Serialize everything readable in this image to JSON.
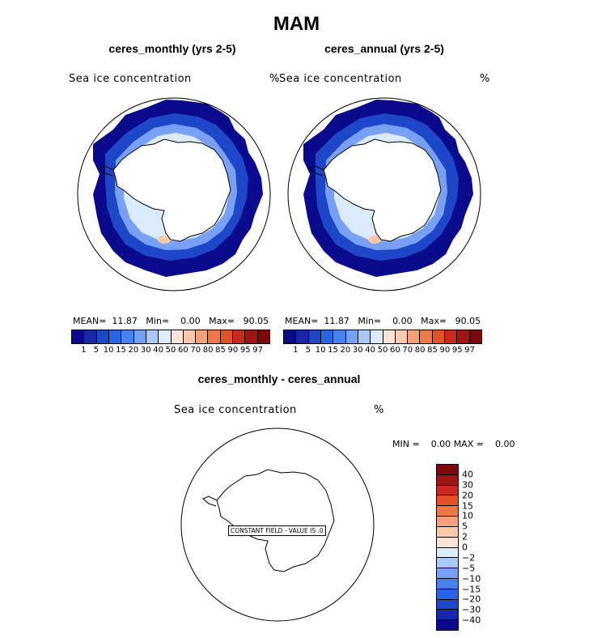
{
  "title": "MAM",
  "panels": [
    {
      "subtitle": "ceres_monthly (yrs 2-5)",
      "field_name": "Sea ice concentration",
      "units": "%",
      "stats": {
        "mean_label": "MEAN=",
        "mean": "11.87",
        "min_label": "Min=",
        "min": "0.00",
        "max_label": "Max=",
        "max": "90.05"
      }
    },
    {
      "subtitle": "ceres_annual (yrs 2-5)",
      "field_name": "Sea ice concentration",
      "units": "%",
      "stats": {
        "mean_label": "MEAN=",
        "mean": "11.87",
        "min_label": "Min=",
        "min": "0.00",
        "max_label": "Max=",
        "max": "90.05"
      }
    }
  ],
  "diff_panel": {
    "subtitle": "ceres_monthly - ceres_annual",
    "field_name": "Sea ice concentration",
    "units": "%",
    "stats": {
      "min_label": "MIN =",
      "min": "0.00",
      "max_label": "MAX =",
      "max": "0.00"
    },
    "constant_note": "CONSTANT FIELD - VALUE IS .0"
  },
  "colorbar_main": {
    "colors": [
      "#0a0a8c",
      "#1428a8",
      "#1e46c8",
      "#2864e6",
      "#4682f0",
      "#78a0f5",
      "#aac8fa",
      "#dcebfa",
      "#fbe4d5",
      "#fac8aa",
      "#f5a078",
      "#f07846",
      "#e65028",
      "#c8281e",
      "#a01414",
      "#7a0a0a"
    ],
    "labels": [
      "1",
      "5",
      "10",
      "15",
      "20",
      "30",
      "40",
      "50",
      "60",
      "70",
      "80",
      "85",
      "90",
      "95",
      "97"
    ]
  },
  "colorbar_diff": {
    "colors": [
      "#7a0a0a",
      "#a01414",
      "#c8281e",
      "#e65028",
      "#f07846",
      "#f5a078",
      "#fac8aa",
      "#fbe4d5",
      "#dcebfa",
      "#aac8fa",
      "#78a0f5",
      "#4682f0",
      "#2864e6",
      "#1e46c8",
      "#1428a8",
      "#0a0a8c"
    ],
    "labels": [
      "40",
      "30",
      "20",
      "15",
      "10",
      "5",
      "2",
      "0",
      "−2",
      "−5",
      "−10",
      "−15",
      "−20",
      "−30",
      "−40"
    ]
  }
}
